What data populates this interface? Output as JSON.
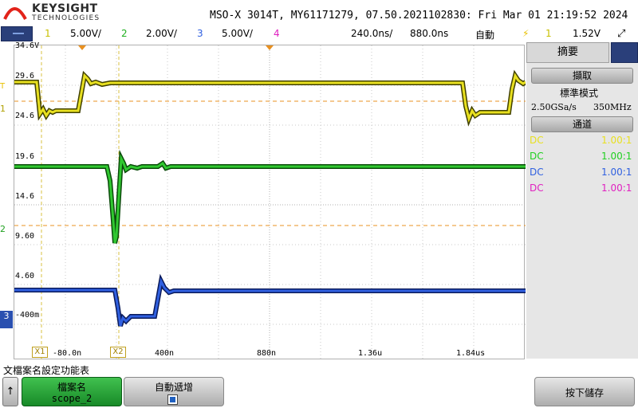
{
  "header": {
    "brand": "KEYSIGHT",
    "brand_sub": "TECHNOLOGIES",
    "model_line": "MSO-X 3014T, MY61171279, 07.50.2021102830: Fri Mar 01 21:19:52 2024"
  },
  "status": {
    "ch1_num": "1",
    "ch1_scale": "5.00V/",
    "ch2_num": "2",
    "ch2_scale": "2.00V/",
    "ch3_num": "3",
    "ch3_scale": "5.00V/",
    "ch4_num": "4",
    "time_scale": "240.0ns/",
    "delay": "880.0ns",
    "trigger_mode": "自動",
    "trigger_channel": "1",
    "trigger_level": "1.52V"
  },
  "plot": {
    "y_labels": [
      "34.6V",
      "29.6",
      "24.6",
      "19.6",
      "14.6",
      "9.60",
      "4.60",
      "-400m"
    ],
    "x_labels": [
      "-80.0n",
      "400n",
      "880n",
      "1.36u",
      "1.84us"
    ],
    "cursor_x1": "X1",
    "cursor_x2": "X2",
    "ch_markers": [
      "1",
      "2",
      "3"
    ],
    "trigger_marker": "T"
  },
  "side": {
    "tab_label": "摘要",
    "acquire_header": "擷取",
    "mode_label": "標準模式",
    "sample_rate": "2.50GSa/s",
    "bandwidth": "350MHz",
    "channels_header": "通道",
    "channels": [
      {
        "coupling": "DC",
        "ratio": "1.00:1",
        "color": "#e8e020"
      },
      {
        "coupling": "DC",
        "ratio": "1.00:1",
        "color": "#20d020"
      },
      {
        "coupling": "DC",
        "ratio": "1.00:1",
        "color": "#3060e0"
      },
      {
        "coupling": "DC",
        "ratio": "1.00:1",
        "color": "#e020c0"
      }
    ]
  },
  "softkeys": {
    "menu_title": "文檔案名設定功能表",
    "home_icon": "↑",
    "file_name_label": "檔案名",
    "file_name_value": "scope_2",
    "auto_increment_label": "自動遞增",
    "press_save_label": "按下儲存"
  },
  "colors": {
    "ch1": "#e8e020",
    "ch2": "#20c020",
    "ch3": "#2040c0",
    "ch4": "#e020c0",
    "grid": "#c8c8c8",
    "trigger": "#e89020"
  }
}
